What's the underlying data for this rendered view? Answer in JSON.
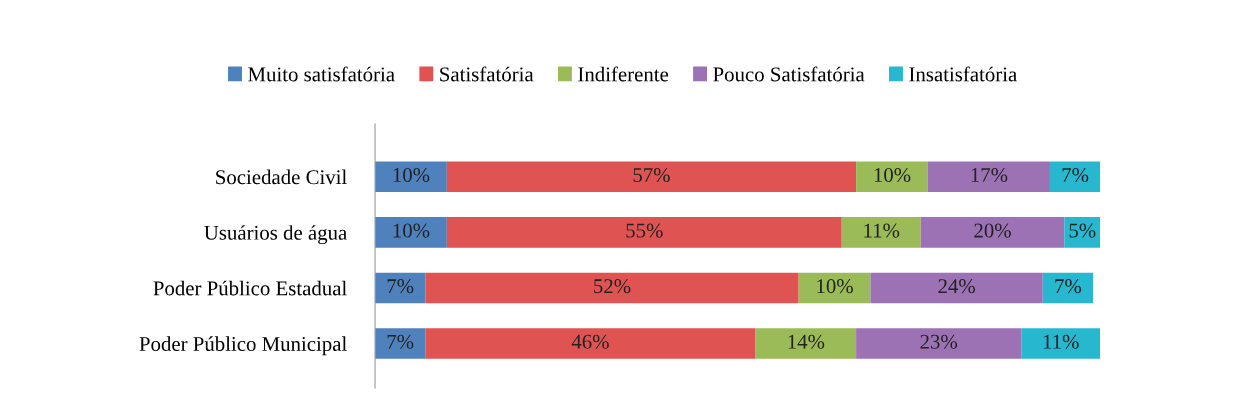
{
  "chart_data": {
    "type": "bar",
    "orientation": "horizontal",
    "stacked": true,
    "legend": "top",
    "grid": false,
    "tick_labels": "y",
    "categories": [
      "Sociedade Civil",
      "Usuários de água",
      "Poder Público Estadual",
      "Poder Público Municipal"
    ],
    "series": [
      {
        "name": "Muito satisfatória",
        "color": "#4f81bd",
        "values": [
          10,
          10,
          7,
          7
        ],
        "value_labels": [
          "10%",
          "10%",
          "7%",
          "7%"
        ]
      },
      {
        "name": "Satisfatória",
        "color": "#df5353",
        "values": [
          57,
          55,
          52,
          46
        ],
        "value_labels": [
          "57%",
          "55%",
          "52%",
          "46%"
        ]
      },
      {
        "name": "Indiferente",
        "color": "#9bbb59",
        "values": [
          10,
          11,
          10,
          14
        ],
        "value_labels": [
          "10%",
          "11%",
          "10%",
          "14%"
        ]
      },
      {
        "name": "Pouco Satisfatória",
        "color": "#9d72b5",
        "values": [
          17,
          20,
          24,
          23
        ],
        "value_labels": [
          "17%",
          "20%",
          "24%",
          "23%"
        ]
      },
      {
        "name": "Insatisfatória",
        "color": "#27b7cf",
        "values": [
          7,
          5,
          7,
          11
        ],
        "value_labels": [
          "7%",
          "5%",
          "7%",
          "11%"
        ]
      }
    ]
  }
}
